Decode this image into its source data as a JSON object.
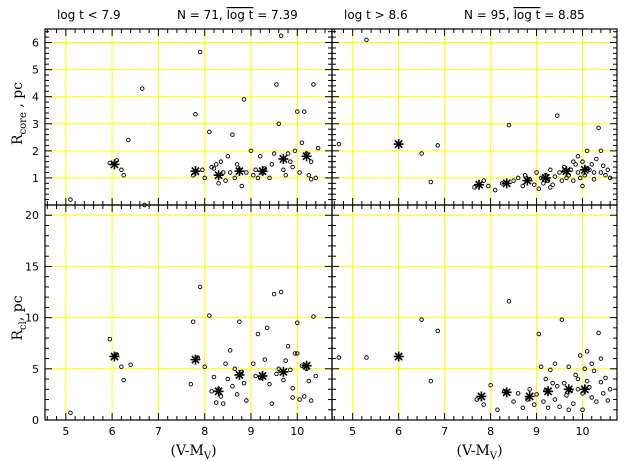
{
  "chart_data": [
    {
      "type": "scatter",
      "panel": "top-left",
      "title_left": "log t < 7.9",
      "title_right_prefix": "N = 71, ",
      "title_right_mean": "log t",
      "title_right_suffix": " = 7.39",
      "xlim": [
        4.55,
        10.75
      ],
      "ylim": [
        0,
        6.5
      ],
      "xticks": [
        5,
        6,
        7,
        8,
        9,
        10
      ],
      "yticks": [
        0,
        1,
        2,
        3,
        4,
        5,
        6
      ],
      "ylabel_main": "R",
      "ylabel_sub": "core",
      "ylabel_rest": " , pc",
      "points": [
        [
          5.1,
          0.2
        ],
        [
          5.95,
          1.55
        ],
        [
          6.1,
          1.65
        ],
        [
          6.2,
          1.3
        ],
        [
          6.25,
          1.1
        ],
        [
          6.35,
          2.4
        ],
        [
          6.65,
          4.3
        ],
        [
          6.7,
          0.0
        ],
        [
          7.75,
          1.1
        ],
        [
          7.8,
          3.35
        ],
        [
          7.9,
          5.65
        ],
        [
          7.95,
          1.3
        ],
        [
          8.0,
          1.0
        ],
        [
          8.1,
          2.7
        ],
        [
          8.15,
          1.4
        ],
        [
          8.2,
          1.35
        ],
        [
          8.25,
          1.5
        ],
        [
          8.3,
          0.8
        ],
        [
          8.35,
          1.6
        ],
        [
          8.4,
          1.2
        ],
        [
          8.45,
          0.9
        ],
        [
          8.5,
          1.8
        ],
        [
          8.55,
          1.2
        ],
        [
          8.6,
          2.6
        ],
        [
          8.65,
          1.0
        ],
        [
          8.7,
          1.5
        ],
        [
          8.75,
          1.3
        ],
        [
          8.8,
          0.7
        ],
        [
          8.85,
          3.9
        ],
        [
          8.9,
          1.2
        ],
        [
          9.0,
          2.0
        ],
        [
          9.05,
          1.1
        ],
        [
          9.1,
          1.3
        ],
        [
          9.15,
          1.0
        ],
        [
          9.2,
          1.8
        ],
        [
          9.25,
          1.2
        ],
        [
          9.3,
          1.35
        ],
        [
          9.4,
          1.0
        ],
        [
          9.45,
          1.5
        ],
        [
          9.5,
          1.9
        ],
        [
          9.55,
          4.45
        ],
        [
          9.6,
          3.0
        ],
        [
          9.65,
          6.25
        ],
        [
          9.7,
          1.3
        ],
        [
          9.75,
          1.1
        ],
        [
          9.8,
          1.9
        ],
        [
          9.85,
          1.6
        ],
        [
          9.9,
          1.4
        ],
        [
          9.95,
          2.0
        ],
        [
          10.0,
          3.45
        ],
        [
          10.05,
          1.2
        ],
        [
          10.1,
          2.3
        ],
        [
          10.15,
          3.45
        ],
        [
          10.2,
          1.9
        ],
        [
          10.25,
          1.1
        ],
        [
          10.3,
          0.95
        ],
        [
          10.35,
          4.45
        ],
        [
          10.4,
          1.0
        ],
        [
          10.45,
          2.1
        ],
        [
          10.3,
          1.6
        ]
      ],
      "means": [
        [
          6.05,
          1.5
        ],
        [
          7.8,
          1.25
        ],
        [
          8.3,
          1.1
        ],
        [
          8.75,
          1.25
        ],
        [
          9.25,
          1.25
        ],
        [
          9.7,
          1.7
        ],
        [
          10.2,
          1.8
        ]
      ]
    },
    {
      "type": "scatter",
      "panel": "top-right",
      "title_left": "log t > 8.6",
      "title_right_prefix": "N = 95, ",
      "title_right_mean": "log t",
      "title_right_suffix": " = 8.85",
      "xlim": [
        4.55,
        10.75
      ],
      "ylim": [
        0,
        6.5
      ],
      "xticks": [
        5,
        6,
        7,
        8,
        9,
        10
      ],
      "yticks": [
        0,
        1,
        2,
        3,
        4,
        5,
        6
      ],
      "points": [
        [
          4.7,
          2.25
        ],
        [
          5.3,
          6.1
        ],
        [
          6.5,
          1.9
        ],
        [
          6.7,
          0.85
        ],
        [
          6.85,
          2.2
        ],
        [
          7.65,
          0.65
        ],
        [
          7.85,
          0.9
        ],
        [
          7.95,
          0.7
        ],
        [
          8.1,
          0.55
        ],
        [
          8.25,
          0.8
        ],
        [
          8.4,
          2.95
        ],
        [
          8.5,
          0.9
        ],
        [
          8.6,
          1.0
        ],
        [
          8.7,
          0.7
        ],
        [
          8.75,
          1.1
        ],
        [
          8.85,
          0.95
        ],
        [
          8.95,
          0.75
        ],
        [
          9.0,
          1.2
        ],
        [
          9.05,
          0.6
        ],
        [
          9.1,
          1.0
        ],
        [
          9.15,
          0.8
        ],
        [
          9.2,
          1.1
        ],
        [
          9.25,
          0.9
        ],
        [
          9.3,
          1.3
        ],
        [
          9.35,
          0.75
        ],
        [
          9.4,
          1.05
        ],
        [
          9.45,
          3.3
        ],
        [
          9.5,
          1.2
        ],
        [
          9.55,
          0.9
        ],
        [
          9.6,
          1.4
        ],
        [
          9.65,
          1.0
        ],
        [
          9.7,
          1.1
        ],
        [
          9.75,
          1.3
        ],
        [
          9.8,
          0.9
        ],
        [
          9.85,
          1.5
        ],
        [
          9.9,
          1.2
        ],
        [
          9.95,
          1.0
        ],
        [
          10.0,
          1.6
        ],
        [
          10.05,
          1.1
        ],
        [
          10.1,
          2.0
        ],
        [
          10.15,
          1.3
        ],
        [
          10.2,
          1.5
        ],
        [
          10.25,
          0.95
        ],
        [
          10.3,
          1.7
        ],
        [
          10.35,
          2.85
        ],
        [
          10.4,
          1.2
        ],
        [
          10.45,
          1.45
        ],
        [
          10.5,
          1.1
        ],
        [
          10.55,
          1.3
        ],
        [
          10.6,
          1.0
        ],
        [
          10.0,
          0.7
        ],
        [
          9.9,
          1.8
        ],
        [
          10.1,
          1.35
        ],
        [
          10.4,
          2.0
        ],
        [
          9.6,
          1.25
        ],
        [
          9.3,
          0.65
        ],
        [
          9.8,
          1.6
        ],
        [
          10.25,
          1.2
        ]
      ],
      "means": [
        [
          6.0,
          2.25
        ],
        [
          7.75,
          0.75
        ],
        [
          8.35,
          0.8
        ],
        [
          8.8,
          0.9
        ],
        [
          9.2,
          1.0
        ],
        [
          9.65,
          1.25
        ],
        [
          10.05,
          1.3
        ]
      ]
    },
    {
      "type": "scatter",
      "panel": "bottom-left",
      "xlim": [
        4.55,
        10.75
      ],
      "ylim": [
        0,
        21
      ],
      "xticks": [
        5,
        6,
        7,
        8,
        9,
        10
      ],
      "yticks": [
        0,
        5,
        10,
        15,
        20
      ],
      "xlabel_main": "(V-M",
      "xlabel_sub": "V",
      "xlabel_rest": ")",
      "ylabel_main": "R",
      "ylabel_sub": "cl",
      "ylabel_rest": ", pc",
      "points": [
        [
          5.1,
          0.7
        ],
        [
          5.95,
          7.9
        ],
        [
          6.1,
          6.4
        ],
        [
          6.2,
          5.2
        ],
        [
          6.25,
          3.9
        ],
        [
          6.4,
          5.4
        ],
        [
          7.7,
          3.5
        ],
        [
          7.75,
          9.6
        ],
        [
          7.85,
          6.1
        ],
        [
          7.9,
          13.0
        ],
        [
          8.0,
          5.2
        ],
        [
          8.1,
          10.2
        ],
        [
          8.15,
          2.8
        ],
        [
          8.2,
          4.2
        ],
        [
          8.25,
          1.7
        ],
        [
          8.3,
          3.0
        ],
        [
          8.35,
          2.3
        ],
        [
          8.4,
          1.6
        ],
        [
          8.45,
          5.5
        ],
        [
          8.5,
          4.0
        ],
        [
          8.55,
          6.8
        ],
        [
          8.6,
          3.3
        ],
        [
          8.65,
          5.0
        ],
        [
          8.7,
          2.5
        ],
        [
          8.75,
          9.6
        ],
        [
          8.8,
          4.7
        ],
        [
          8.85,
          3.6
        ],
        [
          8.9,
          1.9
        ],
        [
          9.05,
          5.5
        ],
        [
          9.1,
          4.3
        ],
        [
          9.15,
          8.4
        ],
        [
          9.2,
          4.1
        ],
        [
          9.3,
          5.9
        ],
        [
          9.35,
          9.0
        ],
        [
          9.4,
          3.5
        ],
        [
          9.45,
          1.6
        ],
        [
          9.5,
          12.3
        ],
        [
          9.55,
          4.5
        ],
        [
          9.6,
          5.0
        ],
        [
          9.65,
          12.5
        ],
        [
          9.7,
          3.9
        ],
        [
          9.75,
          5.8
        ],
        [
          9.8,
          7.2
        ],
        [
          9.85,
          4.9
        ],
        [
          9.9,
          3.1
        ],
        [
          9.95,
          6.5
        ],
        [
          10.0,
          9.5
        ],
        [
          10.05,
          2.0
        ],
        [
          10.1,
          5.3
        ],
        [
          10.15,
          2.3
        ],
        [
          10.2,
          5.0
        ],
        [
          10.25,
          3.8
        ],
        [
          10.3,
          1.9
        ],
        [
          10.35,
          10.1
        ],
        [
          10.4,
          4.3
        ],
        [
          10.0,
          6.5
        ],
        [
          9.9,
          2.2
        ]
      ],
      "means": [
        [
          6.05,
          6.2
        ],
        [
          7.8,
          5.9
        ],
        [
          8.3,
          2.8
        ],
        [
          8.75,
          4.4
        ],
        [
          9.25,
          4.3
        ],
        [
          9.7,
          4.7
        ],
        [
          10.2,
          5.3
        ]
      ]
    },
    {
      "type": "scatter",
      "panel": "bottom-right",
      "xlim": [
        4.55,
        10.75
      ],
      "ylim": [
        0,
        21
      ],
      "xticks": [
        5,
        6,
        7,
        8,
        9,
        10
      ],
      "yticks": [
        0,
        5,
        10,
        15,
        20
      ],
      "xlabel_main": "(V-M",
      "xlabel_sub": "V",
      "xlabel_rest": ")",
      "points": [
        [
          4.7,
          6.1
        ],
        [
          5.3,
          6.1
        ],
        [
          6.5,
          9.8
        ],
        [
          6.7,
          3.8
        ],
        [
          6.85,
          8.7
        ],
        [
          7.7,
          2.0
        ],
        [
          7.85,
          1.5
        ],
        [
          8.0,
          3.4
        ],
        [
          8.15,
          1.0
        ],
        [
          8.3,
          2.8
        ],
        [
          8.4,
          11.6
        ],
        [
          8.5,
          1.8
        ],
        [
          8.6,
          2.6
        ],
        [
          8.7,
          1.2
        ],
        [
          8.8,
          2.0
        ],
        [
          8.85,
          3.0
        ],
        [
          8.95,
          1.5
        ],
        [
          9.0,
          2.5
        ],
        [
          9.05,
          8.4
        ],
        [
          9.1,
          5.2
        ],
        [
          9.15,
          1.8
        ],
        [
          9.2,
          2.9
        ],
        [
          9.25,
          1.2
        ],
        [
          9.3,
          4.9
        ],
        [
          9.35,
          3.6
        ],
        [
          9.4,
          2.0
        ],
        [
          9.45,
          3.3
        ],
        [
          9.5,
          1.3
        ],
        [
          9.55,
          9.8
        ],
        [
          9.6,
          3.6
        ],
        [
          9.65,
          2.4
        ],
        [
          9.7,
          5.2
        ],
        [
          9.75,
          2.9
        ],
        [
          9.8,
          1.6
        ],
        [
          9.85,
          4.4
        ],
        [
          9.9,
          3.0
        ],
        [
          9.95,
          6.3
        ],
        [
          10.0,
          2.6
        ],
        [
          10.05,
          5.0
        ],
        [
          10.1,
          6.7
        ],
        [
          10.15,
          3.2
        ],
        [
          10.2,
          2.2
        ],
        [
          10.25,
          4.8
        ],
        [
          10.3,
          1.8
        ],
        [
          10.35,
          8.5
        ],
        [
          10.4,
          3.7
        ],
        [
          10.45,
          2.6
        ],
        [
          10.5,
          4.1
        ],
        [
          10.55,
          1.9
        ],
        [
          10.6,
          3.0
        ],
        [
          10.0,
          1.0
        ],
        [
          9.9,
          4.0
        ],
        [
          10.2,
          5.5
        ],
        [
          9.7,
          1.0
        ],
        [
          9.4,
          5.5
        ],
        [
          10.4,
          6.0
        ],
        [
          9.2,
          4.0
        ],
        [
          10.1,
          3.8
        ]
      ],
      "means": [
        [
          6.0,
          6.2
        ],
        [
          7.8,
          2.3
        ],
        [
          8.35,
          2.7
        ],
        [
          8.85,
          2.3
        ],
        [
          9.25,
          2.8
        ],
        [
          9.7,
          3.0
        ],
        [
          10.05,
          3.0
        ]
      ]
    }
  ],
  "colors": {
    "grid": "#ffff00",
    "ink": "#000000",
    "background": "#ffffff"
  }
}
